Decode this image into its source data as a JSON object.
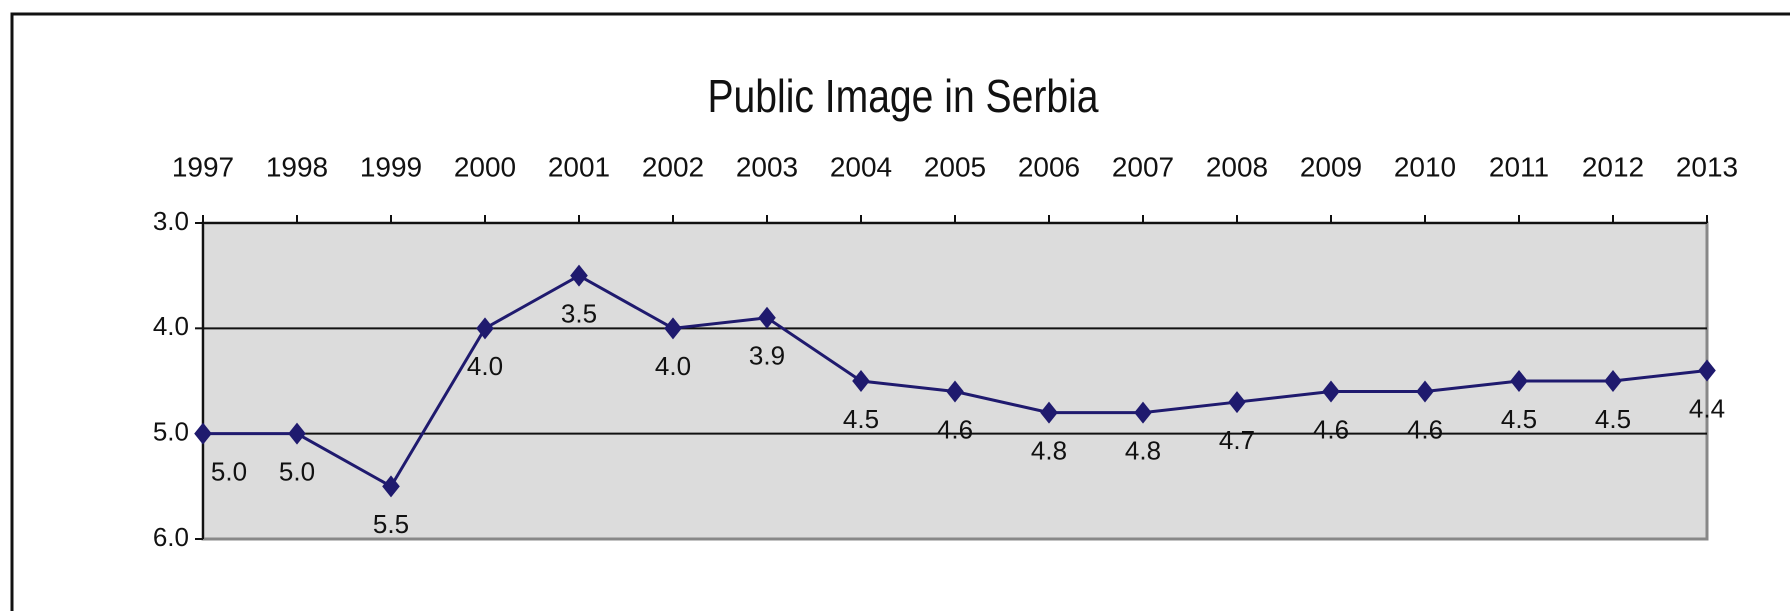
{
  "chart_data": {
    "type": "line",
    "title": "Public Image in Serbia",
    "categories": [
      "1997",
      "1998",
      "1999",
      "2000",
      "2001",
      "2002",
      "2003",
      "2004",
      "2005",
      "2006",
      "2007",
      "2008",
      "2009",
      "2010",
      "2011",
      "2012",
      "2013"
    ],
    "series": [
      {
        "name": "Public Image",
        "color": "#1f1a6e",
        "values": [
          5.0,
          5.0,
          5.5,
          4.0,
          3.5,
          4.0,
          3.9,
          4.5,
          4.6,
          4.8,
          4.8,
          4.7,
          4.6,
          4.6,
          4.5,
          4.5,
          4.4
        ],
        "value_labels": [
          "5.0",
          "5.0",
          "5.5",
          "4.0",
          "3.5",
          "4.0",
          "3.9",
          "4.5",
          "4.6",
          "4.8",
          "4.8",
          "4.7",
          "4.6",
          "4.6",
          "4.5",
          "4.5",
          "4.4"
        ]
      }
    ],
    "ylim": [
      3,
      6
    ],
    "invert_y": true,
    "yticks": [
      {
        "value": 3,
        "label": "3.0"
      },
      {
        "value": 4,
        "label": "4.0"
      },
      {
        "value": 5,
        "label": "5.0"
      },
      {
        "value": 6,
        "label": "6.0"
      }
    ],
    "grid": true,
    "x_axis_position": "top"
  }
}
